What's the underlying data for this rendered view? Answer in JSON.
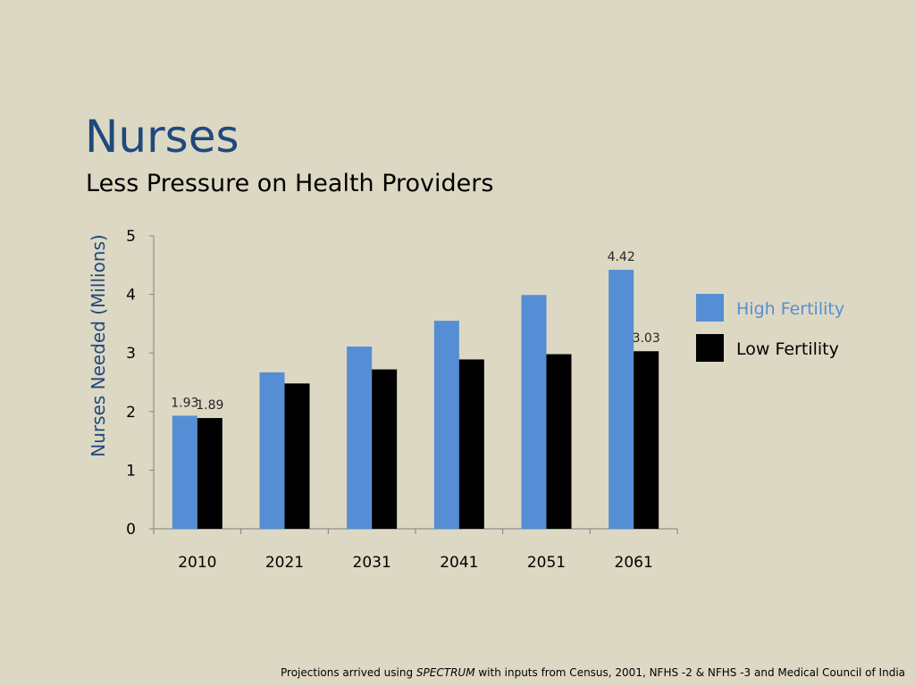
{
  "slide": {
    "title": "Nurses",
    "subtitle": "Less Pressure on Health Providers"
  },
  "footnote": {
    "prefix": "Projections arrived using ",
    "emphasis": "SPECTRUM",
    "suffix": " with inputs from Census, 2001, NFHS -2 & NFHS -3 and Medical Council of India"
  },
  "colors": {
    "high": "#558ed5",
    "low": "#000000",
    "high_legend_text": "#558ed5",
    "low_legend_text": "#000000"
  },
  "chart_data": {
    "type": "bar",
    "title": "",
    "xlabel": "",
    "ylabel": "Nurses Needed (Millions)",
    "ylim": [
      0,
      5
    ],
    "yticks": [
      0,
      1,
      2,
      3,
      4,
      5
    ],
    "categories": [
      "2010",
      "2021",
      "2031",
      "2041",
      "2051",
      "2061"
    ],
    "series": [
      {
        "name": "High Fertility",
        "values": [
          1.93,
          2.67,
          3.11,
          3.55,
          3.99,
          4.42
        ]
      },
      {
        "name": "Low Fertility",
        "values": [
          1.89,
          2.48,
          2.72,
          2.89,
          2.98,
          3.03
        ]
      }
    ],
    "data_labels": [
      {
        "series": 0,
        "index": 0,
        "text": "1.93"
      },
      {
        "series": 1,
        "index": 0,
        "text": "1.89"
      },
      {
        "series": 0,
        "index": 5,
        "text": "4.42"
      },
      {
        "series": 1,
        "index": 5,
        "text": "3.03"
      }
    ],
    "legend": "right",
    "grid": false
  }
}
